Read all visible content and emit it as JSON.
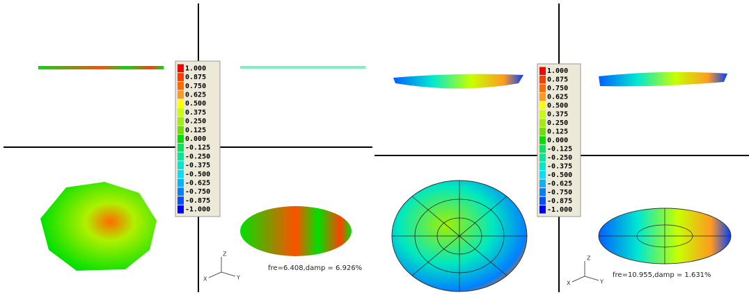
{
  "panels": [
    {
      "legend": [
        {
          "label": "1.000",
          "color": "#ff0000"
        },
        {
          "label": "0.875",
          "color": "#ff3c00"
        },
        {
          "label": "0.750",
          "color": "#ff6a00"
        },
        {
          "label": "0.625",
          "color": "#ff9a20"
        },
        {
          "label": "0.500",
          "color": "#ffff00"
        },
        {
          "label": "0.375",
          "color": "#c8ff00"
        },
        {
          "label": "0.250",
          "color": "#a0f000"
        },
        {
          "label": "0.125",
          "color": "#70e000"
        },
        {
          "label": "0.000",
          "color": "#00e000"
        },
        {
          "label": "-0.125",
          "color": "#00e860"
        },
        {
          "label": "-0.250",
          "color": "#00e8a0"
        },
        {
          "label": "-0.375",
          "color": "#00e8d0"
        },
        {
          "label": "-0.500",
          "color": "#00e0ff"
        },
        {
          "label": "-0.625",
          "color": "#00b4ff"
        },
        {
          "label": "-0.750",
          "color": "#0080ff"
        },
        {
          "label": "-0.875",
          "color": "#0050ff"
        },
        {
          "label": "-1.000",
          "color": "#0000ff"
        }
      ],
      "caption": "fre=6.408,damp = 6.926%",
      "axes": {
        "z": "Z",
        "x": "X",
        "y": "Y"
      }
    },
    {
      "legend": [
        {
          "label": "1.000",
          "color": "#ff0000"
        },
        {
          "label": "0.875",
          "color": "#ff3c00"
        },
        {
          "label": "0.750",
          "color": "#ff6a00"
        },
        {
          "label": "0.625",
          "color": "#ff9a20"
        },
        {
          "label": "0.500",
          "color": "#ffff00"
        },
        {
          "label": "0.375",
          "color": "#c8ff00"
        },
        {
          "label": "0.250",
          "color": "#a0f000"
        },
        {
          "label": "0.125",
          "color": "#70e000"
        },
        {
          "label": "0.000",
          "color": "#00e000"
        },
        {
          "label": "-0.125",
          "color": "#00e860"
        },
        {
          "label": "-0.250",
          "color": "#00e8a0"
        },
        {
          "label": "-0.375",
          "color": "#00e8d0"
        },
        {
          "label": "-0.500",
          "color": "#00e0ff"
        },
        {
          "label": "-0.625",
          "color": "#00b4ff"
        },
        {
          "label": "-0.750",
          "color": "#0080ff"
        },
        {
          "label": "-0.875",
          "color": "#0050ff"
        },
        {
          "label": "-1.000",
          "color": "#0000ff"
        }
      ],
      "caption": "fre=10.955,damp = 1.631%",
      "axes": {
        "z": "Z",
        "x": "X",
        "y": "Y"
      }
    }
  ]
}
